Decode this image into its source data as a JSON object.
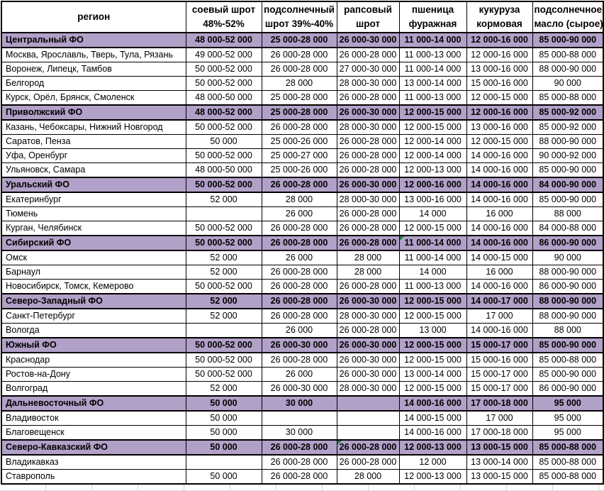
{
  "colors": {
    "section_bg": "#B1A0C7",
    "border": "#000000",
    "marker_green": "#1E8245",
    "gridline": "#D4D4D4"
  },
  "table": {
    "columns": [
      {
        "line1": "регион",
        "line2": ""
      },
      {
        "line1": "соевый шрот",
        "line2": "48%-52%"
      },
      {
        "line1": "подсолнечный",
        "line2": "шрот 39%-40%"
      },
      {
        "line1": "рапсовый",
        "line2": "шрот"
      },
      {
        "line1": "пшеница",
        "line2": "фуражная"
      },
      {
        "line1": "кукуруза",
        "line2": "кормовая"
      },
      {
        "line1": "подсолнечное",
        "line2": "масло (сырое)"
      }
    ],
    "rows": [
      {
        "type": "district",
        "region": "Центральный ФО",
        "values": [
          "48 000-52 000",
          "25 000-28 000",
          "26 000-30 000",
          "11 000-14 000",
          "12 000-16 000",
          "85 000-90 000"
        ]
      },
      {
        "type": "city",
        "region": "Москва, Ярославль, Тверь, Тула, Рязань",
        "values": [
          "49 000-52 000",
          "26 000-28 000",
          "26 000-28 000",
          "11 000-13 000",
          "12 000-16 000",
          "85 000-88 000"
        ]
      },
      {
        "type": "city",
        "region": "Воронеж, Липецк, Тамбов",
        "values": [
          "50 000-52 000",
          "26 000-28 000",
          "27 000-30 000",
          "11 000-14 000",
          "13 000-16 000",
          "88 000-90 000"
        ]
      },
      {
        "type": "city",
        "region": "Белгород",
        "values": [
          "50 000-52 000",
          "28 000",
          "28 000-30 000",
          "13 000-14 000",
          "15 000-16 000",
          "90 000"
        ]
      },
      {
        "type": "city",
        "region": "Курск, Орёл, Брянск, Смоленск",
        "values": [
          "48 000-50 000",
          "25 000-28 000",
          "26 000-28 000",
          "11 000-13 000",
          "12 000-15 000",
          "85 000-88 000"
        ]
      },
      {
        "type": "district",
        "region": "Приволжский ФО",
        "values": [
          "48 000-52 000",
          "25 000-28 000",
          "26 000-30 000",
          "12 000-15 000",
          "12 000-16 000",
          "85 000-92 000"
        ]
      },
      {
        "type": "city",
        "region": "Казань, Чебоксары, Нижний Новгород",
        "values": [
          "50 000-52 000",
          "26 000-28 000",
          "28 000-30 000",
          "12 000-15 000",
          "13 000-16 000",
          "85 000-92 000"
        ]
      },
      {
        "type": "city",
        "region": "Саратов, Пенза",
        "values": [
          "50 000",
          "25 000-26 000",
          "26 000-28 000",
          "12 000-14 000",
          "12 000-15 000",
          "88 000-90 000"
        ]
      },
      {
        "type": "city",
        "region": "Уфа, Оренбург",
        "values": [
          "50 000-52 000",
          "25 000-27 000",
          "26 000-28 000",
          "12 000-14 000",
          "14 000-16 000",
          "90 000-92 000"
        ]
      },
      {
        "type": "city",
        "region": "Ульяновск, Самара",
        "values": [
          "48 000-50 000",
          "25 000-26 000",
          "26 000-28 000",
          "12 000-13 000",
          "14 000-16 000",
          "85 000-90 000"
        ]
      },
      {
        "type": "district",
        "region": "Уральский ФО",
        "values": [
          "50 000-52 000",
          "26 000-28 000",
          "26 000-30 000",
          "12 000-16 000",
          "14 000-16 000",
          "84 000-90 000"
        ]
      },
      {
        "type": "city",
        "region": "Екатеринбург",
        "values": [
          "52 000",
          "28 000",
          "28 000-30 000",
          "13 000-16 000",
          "14 000-16 000",
          "85 000-90 000"
        ]
      },
      {
        "type": "city",
        "region": "Тюмень",
        "values": [
          "",
          "26 000",
          "26 000-28 000",
          "14 000",
          "16 000",
          "88 000"
        ]
      },
      {
        "type": "city",
        "region": "Курган, Челябинск",
        "values": [
          "50 000-52 000",
          "26 000-28 000",
          "26 000-28 000",
          "12 000-15 000",
          "14 000-16 000",
          "84 000-88 000"
        ]
      },
      {
        "type": "district",
        "region": "Сибирский ФО",
        "values": [
          "50 000-52 000",
          "26 000-28 000",
          "26 000-28 000",
          "11 000-14 000",
          "14 000-16 000",
          "86 000-90 000"
        ],
        "markers": [
          3
        ]
      },
      {
        "type": "city",
        "region": "Омск",
        "values": [
          "52 000",
          "26 000",
          "28 000",
          "11 000-14 000",
          "14 000-15 000",
          "90 000"
        ]
      },
      {
        "type": "city",
        "region": "Барнаул",
        "values": [
          "52 000",
          "26 000-28 000",
          "28 000",
          "14 000",
          "16 000",
          "88 000-90 000"
        ]
      },
      {
        "type": "city",
        "region": "Новосибирск, Томск, Кемерово",
        "values": [
          "50 000-52 000",
          "26 000-28 000",
          "26 000-28 000",
          "11 000-13 000",
          "14 000-16 000",
          "86 000-90 000"
        ]
      },
      {
        "type": "district",
        "region": "Северо-Западный ФО",
        "values": [
          "52 000",
          "26 000-28 000",
          "26 000-30 000",
          "12 000-15 000",
          "14 000-17 000",
          "88 000-90 000"
        ]
      },
      {
        "type": "city",
        "region": "Санкт-Петербург",
        "values": [
          "52 000",
          "26 000-28 000",
          "28 000-30 000",
          "12 000-15 000",
          "17 000",
          "88 000-90 000"
        ]
      },
      {
        "type": "city",
        "region": "Вологда",
        "values": [
          "",
          "26 000",
          "26 000-28 000",
          "13 000",
          "14 000-16 000",
          "88 000"
        ]
      },
      {
        "type": "district",
        "region": "Южный ФО",
        "values": [
          "50 000-52 000",
          "26 000-30 000",
          "26 000-30 000",
          "12 000-15 000",
          "15 000-17 000",
          "85 000-90 000"
        ]
      },
      {
        "type": "city",
        "region": "Краснодар",
        "values": [
          "50 000-52 000",
          "26 000-28 000",
          "26 000-30 000",
          "12 000-15 000",
          "15 000-16 000",
          "85 000-88 000"
        ]
      },
      {
        "type": "city",
        "region": "Ростов-на-Дону",
        "values": [
          "50 000-52 000",
          "26 000",
          "26 000-30 000",
          "13 000-14 000",
          "15 000-17 000",
          "85 000-90 000"
        ]
      },
      {
        "type": "city",
        "region": "Волгоград",
        "values": [
          "52 000",
          "26 000-30 000",
          "28 000-30 000",
          "12 000-15 000",
          "15 000-17 000",
          "86 000-90 000"
        ]
      },
      {
        "type": "district",
        "region": "Дальневосточный ФО",
        "values": [
          "50 000",
          "30 000",
          "",
          "14 000-16 000",
          "17 000-18 000",
          "95 000"
        ]
      },
      {
        "type": "city",
        "region": "Владивосток",
        "values": [
          "50 000",
          "",
          "",
          "14 000-15 000",
          "17 000",
          "95 000"
        ]
      },
      {
        "type": "city",
        "region": "Благовещенск",
        "values": [
          "50 000",
          "30 000",
          "",
          "14 000-16 000",
          "17 000-18 000",
          "95 000"
        ]
      },
      {
        "type": "district",
        "region": "Северо-Кавказский ФО",
        "values": [
          "50 000",
          "26 000-28 000",
          "26 000-28 000",
          "12 000-13 000",
          "13 000-15 000",
          "85 000-88 000"
        ],
        "markers": [
          2
        ]
      },
      {
        "type": "city",
        "region": "Владикавказ",
        "values": [
          "",
          "26 000-28 000",
          "26 000-28 000",
          "12 000",
          "13 000-14 000",
          "85 000-88 000"
        ]
      },
      {
        "type": "city",
        "region": "Ставрополь",
        "values": [
          "50 000",
          "26 000-28 000",
          "28 000",
          "12 000-13 000",
          "13 000-15 000",
          "85 000-88 000"
        ]
      }
    ]
  }
}
